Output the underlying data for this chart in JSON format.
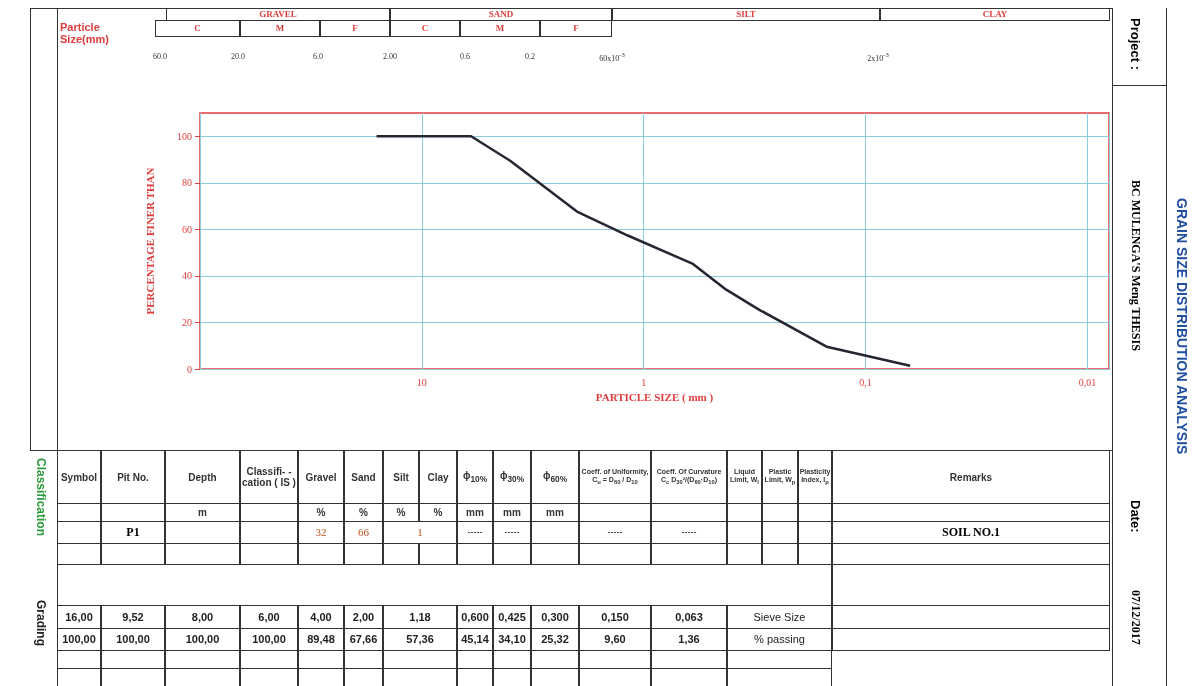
{
  "chart_data": {
    "type": "line",
    "title": "GRAIN SIZE DISTRIBUTION ANALYSIS",
    "subtitle": "BC MULENGA'S Meng THESIS",
    "xlabel": "PARTICLE SIZE ( mm )",
    "ylabel": "PERCENTAGE FINER THAN",
    "x": [
      16,
      9.52,
      8,
      6,
      4,
      2,
      1.18,
      0.6,
      0.425,
      0.3,
      0.15,
      0.063
    ],
    "series": [
      {
        "color": "#262633",
        "values": [
          100,
          100,
          100,
          100,
          89.48,
          67.66,
          57.36,
          45.14,
          34.1,
          25.32,
          9.6,
          1.36
        ]
      }
    ],
    "log": "x",
    "xlim": [
      100,
      0.008
    ],
    "xticks": [
      {
        "value": 10,
        "label": "10"
      },
      {
        "value": 1,
        "label": "1"
      },
      {
        "value": 0.1,
        "label": "0,1"
      },
      {
        "value": 0.01,
        "label": "0,01"
      }
    ],
    "ylim": [
      0,
      110
    ],
    "yticks": [
      0,
      20,
      40,
      60,
      80,
      100
    ],
    "grid": true,
    "marker": "none",
    "annotations": [
      "Particle Size(mm)",
      "GRAVEL",
      "C",
      "M",
      "F",
      "SAND",
      "C",
      "M",
      "F",
      "SILT",
      "CLAY",
      "60.0",
      "20.0",
      "6.0",
      "2.00",
      "0.6",
      "0.2",
      "60x10$^{-3}$",
      "2x10$^{-3}$",
      "Project :",
      "Date:",
      "07/12/2017",
      "Classification",
      "Grading",
      "Symbol",
      "Pit No.",
      "Depth",
      "Classifi- -cation ( IS )",
      "Gravel",
      "Sand",
      "Silt",
      "Clay",
      "ϕ$_{10%}$",
      "ϕ$_{30%}$",
      "ϕ$_{60%}$",
      "Coeff. of Uniformity, C$_{u}$ = D$_{60}$ / D$_{10}$",
      "Coeff. Of Curvature C$_{c}$ D$_{30}$²/(D$_{60}$·D$_{10}$)",
      "Liquid Limit, W$_{l}$",
      "Plastic Limit, W$_{p}$",
      "Plasticity Index, I$_{p}$",
      "Remarks",
      "m",
      "%",
      "%",
      "%",
      "%",
      "mm",
      "mm",
      "mm",
      "P1",
      "32",
      "66",
      "1",
      "-----",
      "-----",
      "-----",
      "-----",
      "SOIL NO.1",
      "16,00",
      "9,52",
      "8,00",
      "6,00",
      "4,00",
      "2,00",
      "1,18",
      "0,600",
      "0,425",
      "0,300",
      "0,150",
      "0,063",
      "Sieve Size",
      "% passing",
      "100,00",
      "100,00",
      "100,00",
      "100,00",
      "89,48",
      "67,66",
      "57,36",
      "45,14",
      "34,10",
      "25,32",
      "9,60",
      "1,36"
    ]
  }
}
